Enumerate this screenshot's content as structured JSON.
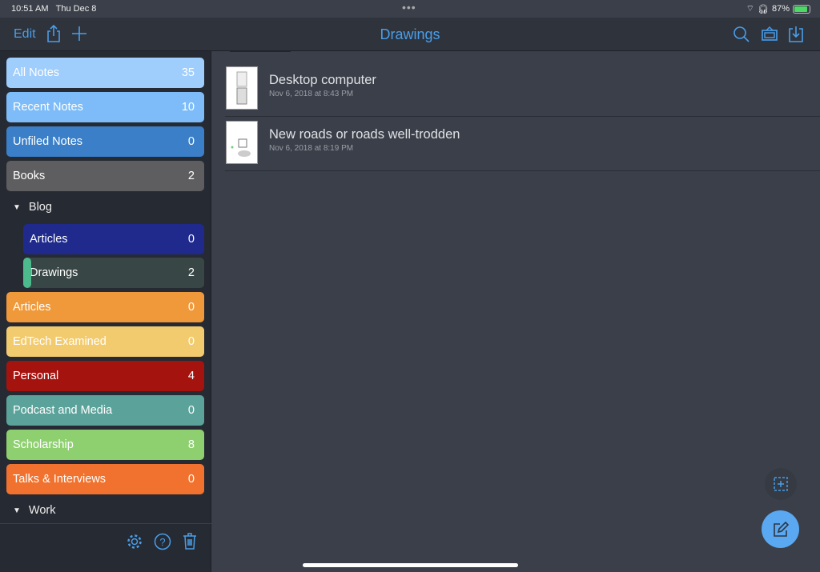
{
  "status": {
    "time": "10:51 AM",
    "date": "Thu Dec 8",
    "battery": "87%",
    "battery_level": 87
  },
  "header": {
    "edit_label": "Edit",
    "title": "Drawings",
    "accent": "#4a9eea"
  },
  "sidebar": {
    "items": [
      {
        "label": "All Notes",
        "count": "35",
        "color": "#9fcdfc"
      },
      {
        "label": "Recent Notes",
        "count": "10",
        "color": "#7dbcf8"
      },
      {
        "label": "Unfiled Notes",
        "count": "0",
        "color": "#3a7fc8"
      },
      {
        "label": "Books",
        "count": "2",
        "color": "#5e5e60"
      }
    ],
    "group_blog": "Blog",
    "blog_items": [
      {
        "label": "Articles",
        "count": "0",
        "color": "#1f2a8c"
      },
      {
        "label": "Drawings",
        "count": "2",
        "color": "#394646",
        "selected": true
      }
    ],
    "items2": [
      {
        "label": "Articles",
        "count": "0",
        "color": "#f0993a"
      },
      {
        "label": "EdTech Examined",
        "count": "0",
        "color": "#f2cb6e"
      },
      {
        "label": "Personal",
        "count": "4",
        "color": "#a5130f"
      },
      {
        "label": "Podcast and Media",
        "count": "0",
        "color": "#5ba39a"
      },
      {
        "label": "Scholarship",
        "count": "8",
        "color": "#8ed070"
      },
      {
        "label": "Talks & Interviews",
        "count": "0",
        "color": "#f1722e"
      }
    ],
    "group_work": "Work"
  },
  "notes": [
    {
      "title": "Desktop computer",
      "date": "Nov 6, 2018 at 8:43 PM"
    },
    {
      "title": "New roads or roads well-trodden",
      "date": "Nov 6, 2018 at 8:19 PM"
    }
  ]
}
